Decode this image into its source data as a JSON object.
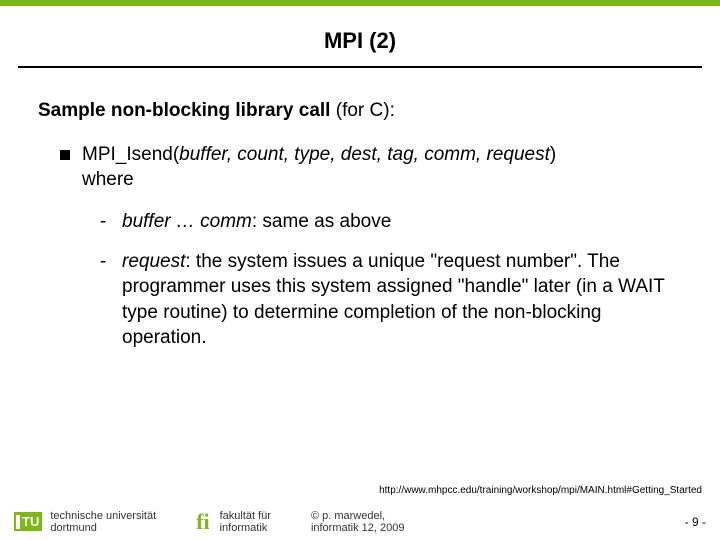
{
  "colors": {
    "accent": "#7fb61a",
    "rule": "#000000",
    "text": "#000000"
  },
  "title": "MPI (2)",
  "lead_prefix": "Sample non-blocking library call",
  "lead_suffix": " (for C):",
  "bullet": {
    "func": "MPI_Isend(",
    "args_italic": "buffer, count, type, dest, tag, comm, request",
    "close": ")",
    "where": "where"
  },
  "dash1": {
    "italic": "buffer … comm",
    "rest": ": same as above"
  },
  "dash2": {
    "italic": "request",
    "rest": ": the system issues a unique \"request number\". The programmer uses this system assigned \"handle\" later (in a WAIT type routine) to determine completion of the non-blocking operation."
  },
  "source": "http://www.mhpcc.edu/training/workshop/mpi/MAIN.html#Getting_Started",
  "footer": {
    "tu": "TU",
    "uni_line1": "technische universität",
    "uni_line2": "dortmund",
    "fi": "fi",
    "fac_line1": "fakultät für",
    "fac_line2": "informatik",
    "author_line1": "© p. marwedel,",
    "author_line2": "informatik 12,  2009",
    "page": "-  9 -"
  }
}
